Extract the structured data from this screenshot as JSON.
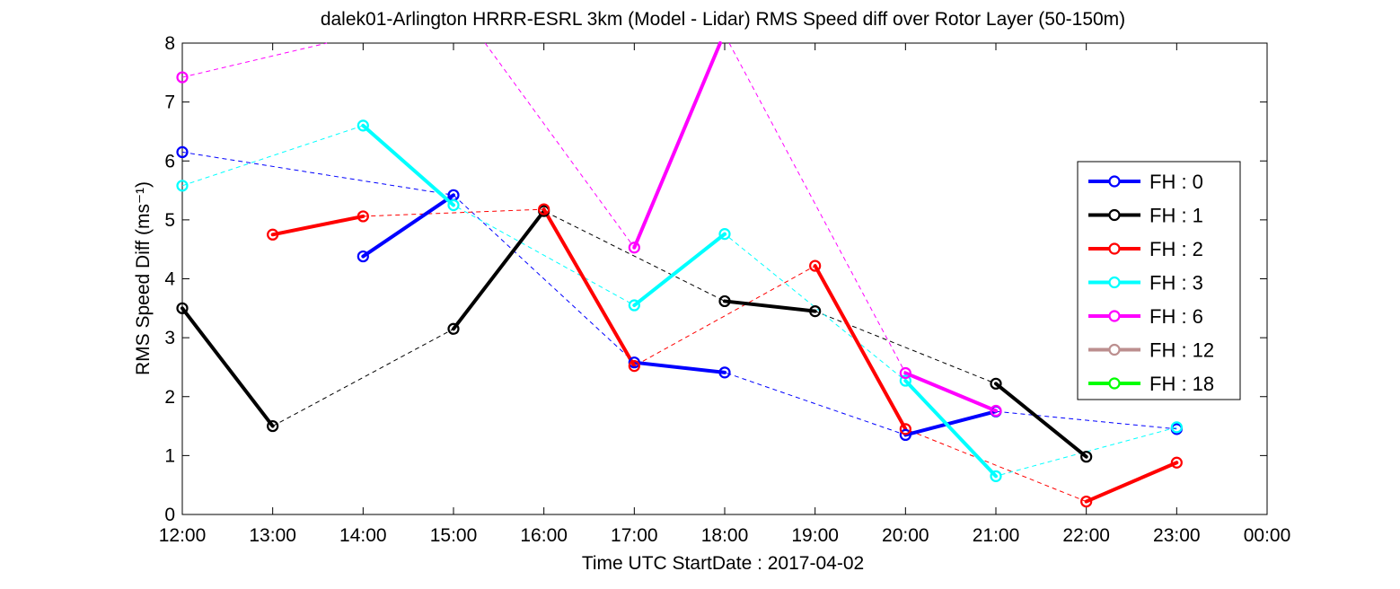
{
  "chart_data": {
    "type": "line",
    "title": "dalek01-Arlington HRRR-ESRL 3km (Model - Lidar) RMS Speed diff over Rotor Layer (50-150m)",
    "ylabel": "RMS Speed Diff (ms⁻¹)",
    "xlabel": "Time UTC    StartDate : 2017-04-02",
    "x_ticks": [
      "12:00",
      "13:00",
      "14:00",
      "15:00",
      "16:00",
      "17:00",
      "18:00",
      "19:00",
      "20:00",
      "21:00",
      "22:00",
      "23:00",
      "00:00"
    ],
    "x_range": [
      12,
      24
    ],
    "ylim": [
      0,
      8
    ],
    "y_ticks": [
      "0",
      "1",
      "2",
      "3",
      "4",
      "5",
      "6",
      "7",
      "8"
    ],
    "legend_position": "right",
    "series": [
      {
        "name": "FH : 0",
        "color": "#0000ff",
        "points": [
          [
            12,
            6.15
          ],
          [
            14,
            4.38
          ],
          [
            15,
            5.42
          ],
          [
            17,
            2.58
          ],
          [
            18,
            2.41
          ],
          [
            20,
            1.35
          ],
          [
            21,
            1.75
          ],
          [
            23,
            1.45
          ]
        ],
        "segments": [
          [
            [
              14,
              4.38
            ],
            [
              15,
              5.42
            ]
          ],
          [
            [
              17,
              2.58
            ],
            [
              18,
              2.41
            ]
          ],
          [
            [
              20,
              1.35
            ],
            [
              21,
              1.75
            ]
          ]
        ],
        "dashed": [
          [
            12,
            6.15
          ],
          [
            15,
            5.42
          ],
          [
            17,
            2.58
          ],
          [
            18,
            2.41
          ],
          [
            20,
            1.35
          ],
          [
            21,
            1.75
          ],
          [
            22,
            1.6
          ],
          [
            23,
            1.45
          ]
        ]
      },
      {
        "name": "FH : 1",
        "color": "#000000",
        "points": [
          [
            12,
            3.5
          ],
          [
            13,
            1.5
          ],
          [
            15,
            3.15
          ],
          [
            16,
            5.15
          ],
          [
            18,
            3.62
          ],
          [
            19,
            3.45
          ],
          [
            21,
            2.22
          ],
          [
            22,
            0.98
          ]
        ],
        "segments": [
          [
            [
              12,
              3.5
            ],
            [
              13,
              1.5
            ]
          ],
          [
            [
              15,
              3.15
            ],
            [
              16,
              5.15
            ]
          ],
          [
            [
              18,
              3.62
            ],
            [
              19,
              3.45
            ]
          ],
          [
            [
              21,
              2.22
            ],
            [
              22,
              0.98
            ]
          ]
        ],
        "dashed": [
          [
            13,
            1.5
          ],
          [
            15,
            3.15
          ],
          [
            16,
            5.15
          ],
          [
            18,
            3.62
          ],
          [
            19,
            3.45
          ],
          [
            21,
            2.22
          ]
        ]
      },
      {
        "name": "FH : 2",
        "color": "#ff0000",
        "points": [
          [
            13,
            4.75
          ],
          [
            14,
            5.06
          ],
          [
            16,
            5.18
          ],
          [
            17,
            2.52
          ],
          [
            19,
            4.22
          ],
          [
            20,
            1.45
          ],
          [
            22,
            0.22
          ],
          [
            23,
            0.88
          ]
        ],
        "segments": [
          [
            [
              13,
              4.75
            ],
            [
              14,
              5.06
            ]
          ],
          [
            [
              16,
              5.18
            ],
            [
              17,
              2.52
            ]
          ],
          [
            [
              19,
              4.22
            ],
            [
              20,
              1.45
            ]
          ],
          [
            [
              22,
              0.22
            ],
            [
              23,
              0.88
            ]
          ]
        ],
        "dashed": [
          [
            14,
            5.06
          ],
          [
            16,
            5.18
          ],
          [
            17,
            2.52
          ],
          [
            19,
            4.22
          ],
          [
            20,
            1.45
          ],
          [
            22,
            0.22
          ]
        ]
      },
      {
        "name": "FH : 3",
        "color": "#00ffff",
        "points": [
          [
            12,
            5.58
          ],
          [
            14,
            6.6
          ],
          [
            15,
            5.25
          ],
          [
            17,
            3.55
          ],
          [
            18,
            4.76
          ],
          [
            20,
            2.27
          ],
          [
            21,
            0.65
          ],
          [
            23,
            1.48
          ]
        ],
        "segments": [
          [
            [
              14,
              6.6
            ],
            [
              15,
              5.25
            ]
          ],
          [
            [
              17,
              3.55
            ],
            [
              18,
              4.76
            ]
          ],
          [
            [
              20,
              2.27
            ],
            [
              21,
              0.65
            ]
          ]
        ],
        "dashed": [
          [
            12,
            5.58
          ],
          [
            14,
            6.6
          ],
          [
            15,
            5.25
          ],
          [
            17,
            3.55
          ],
          [
            18,
            4.76
          ],
          [
            20,
            2.27
          ],
          [
            21,
            0.65
          ],
          [
            23,
            1.48
          ]
        ]
      },
      {
        "name": "FH : 6",
        "color": "#ff00ff",
        "points": [
          [
            12,
            7.42
          ],
          [
            17,
            4.53
          ],
          [
            20,
            2.4
          ],
          [
            21,
            1.76
          ]
        ],
        "segments": [
          [
            [
              17,
              4.53
            ],
            [
              17.95,
              8.0
            ]
          ],
          [
            [
              20,
              2.4
            ],
            [
              21,
              1.76
            ]
          ]
        ],
        "dashed": [
          [
            12,
            7.42
          ],
          [
            13.6,
            8.0
          ],
          null,
          [
            15.35,
            8.0
          ],
          [
            17,
            4.53
          ],
          null,
          [
            18.05,
            8.0
          ],
          [
            20,
            2.4
          ]
        ]
      },
      {
        "name": "FH : 12",
        "color": "#bc8f8f",
        "points": [],
        "segments": [],
        "dashed": []
      },
      {
        "name": "FH : 18",
        "color": "#00ff00",
        "points": [],
        "segments": [],
        "dashed": []
      }
    ]
  }
}
